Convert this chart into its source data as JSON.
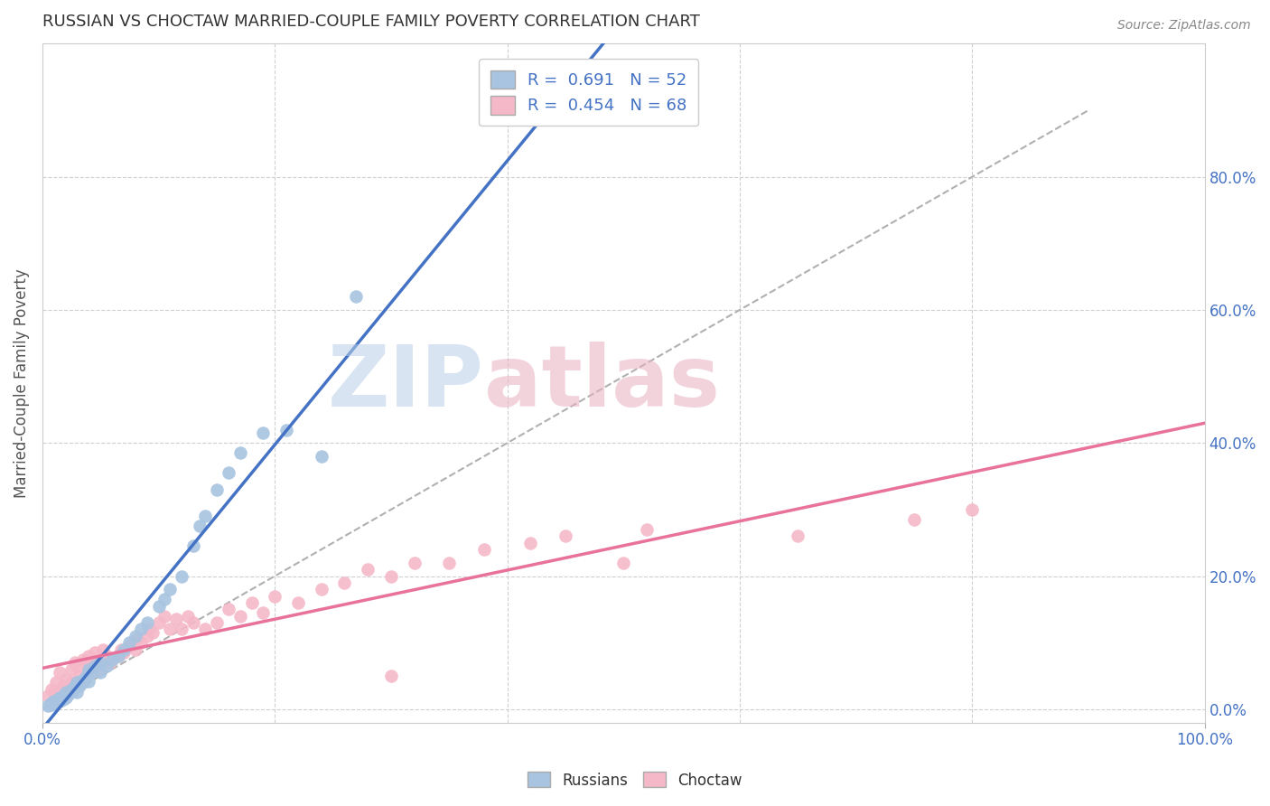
{
  "title": "RUSSIAN VS CHOCTAW MARRIED-COUPLE FAMILY POVERTY CORRELATION CHART",
  "source": "Source: ZipAtlas.com",
  "ylabel": "Married-Couple Family Poverty",
  "xlim": [
    0,
    1.0
  ],
  "ylim": [
    -0.02,
    1.0
  ],
  "xticks": [
    0.0,
    1.0
  ],
  "xticklabels": [
    "0.0%",
    "100.0%"
  ],
  "yticks_right": [
    0.0,
    0.2,
    0.4,
    0.6,
    0.8
  ],
  "yticklabels_right": [
    "0.0%",
    "20.0%",
    "40.0%",
    "60.0%",
    "80.0%"
  ],
  "russian_color": "#a8c4e0",
  "choctaw_color": "#f5b8c8",
  "russian_line_color": "#4472c4",
  "choctaw_line_color": "#e8729a",
  "russian_R": 0.691,
  "russian_N": 52,
  "choctaw_R": 0.454,
  "choctaw_N": 68,
  "watermark": "ZIPatlas",
  "background_color": "#ffffff",
  "grid_color": "#d0d0d0",
  "russian_scatter_x": [
    0.005,
    0.007,
    0.008,
    0.009,
    0.01,
    0.01,
    0.012,
    0.013,
    0.015,
    0.015,
    0.018,
    0.018,
    0.02,
    0.02,
    0.022,
    0.025,
    0.025,
    0.028,
    0.03,
    0.03,
    0.032,
    0.035,
    0.035,
    0.038,
    0.04,
    0.04,
    0.042,
    0.045,
    0.05,
    0.05,
    0.055,
    0.06,
    0.065,
    0.07,
    0.075,
    0.08,
    0.085,
    0.09,
    0.1,
    0.105,
    0.11,
    0.12,
    0.13,
    0.135,
    0.14,
    0.15,
    0.16,
    0.17,
    0.19,
    0.21,
    0.24,
    0.27
  ],
  "russian_scatter_y": [
    0.005,
    0.008,
    0.006,
    0.01,
    0.008,
    0.012,
    0.01,
    0.015,
    0.012,
    0.018,
    0.015,
    0.02,
    0.018,
    0.025,
    0.022,
    0.025,
    0.03,
    0.035,
    0.025,
    0.04,
    0.035,
    0.045,
    0.04,
    0.05,
    0.042,
    0.06,
    0.055,
    0.065,
    0.055,
    0.07,
    0.065,
    0.075,
    0.08,
    0.09,
    0.1,
    0.11,
    0.12,
    0.13,
    0.155,
    0.165,
    0.18,
    0.2,
    0.245,
    0.275,
    0.29,
    0.33,
    0.355,
    0.385,
    0.415,
    0.42,
    0.38,
    0.62
  ],
  "choctaw_scatter_x": [
    0.005,
    0.008,
    0.01,
    0.012,
    0.015,
    0.015,
    0.018,
    0.02,
    0.022,
    0.025,
    0.025,
    0.028,
    0.03,
    0.03,
    0.032,
    0.035,
    0.038,
    0.04,
    0.04,
    0.042,
    0.045,
    0.048,
    0.05,
    0.052,
    0.055,
    0.058,
    0.06,
    0.065,
    0.068,
    0.07,
    0.075,
    0.078,
    0.08,
    0.082,
    0.085,
    0.09,
    0.092,
    0.095,
    0.1,
    0.105,
    0.11,
    0.115,
    0.12,
    0.125,
    0.13,
    0.14,
    0.15,
    0.16,
    0.17,
    0.18,
    0.19,
    0.2,
    0.22,
    0.24,
    0.26,
    0.28,
    0.3,
    0.32,
    0.35,
    0.38,
    0.42,
    0.45,
    0.5,
    0.52,
    0.65,
    0.75,
    0.8,
    0.3
  ],
  "choctaw_scatter_y": [
    0.02,
    0.03,
    0.025,
    0.04,
    0.025,
    0.055,
    0.035,
    0.045,
    0.035,
    0.06,
    0.04,
    0.07,
    0.04,
    0.065,
    0.05,
    0.075,
    0.055,
    0.065,
    0.08,
    0.07,
    0.085,
    0.06,
    0.07,
    0.09,
    0.08,
    0.07,
    0.075,
    0.08,
    0.09,
    0.085,
    0.095,
    0.1,
    0.09,
    0.105,
    0.1,
    0.11,
    0.12,
    0.115,
    0.13,
    0.14,
    0.12,
    0.135,
    0.12,
    0.14,
    0.13,
    0.12,
    0.13,
    0.15,
    0.14,
    0.16,
    0.145,
    0.17,
    0.16,
    0.18,
    0.19,
    0.21,
    0.2,
    0.22,
    0.22,
    0.24,
    0.25,
    0.26,
    0.22,
    0.27,
    0.26,
    0.285,
    0.3,
    0.05
  ]
}
